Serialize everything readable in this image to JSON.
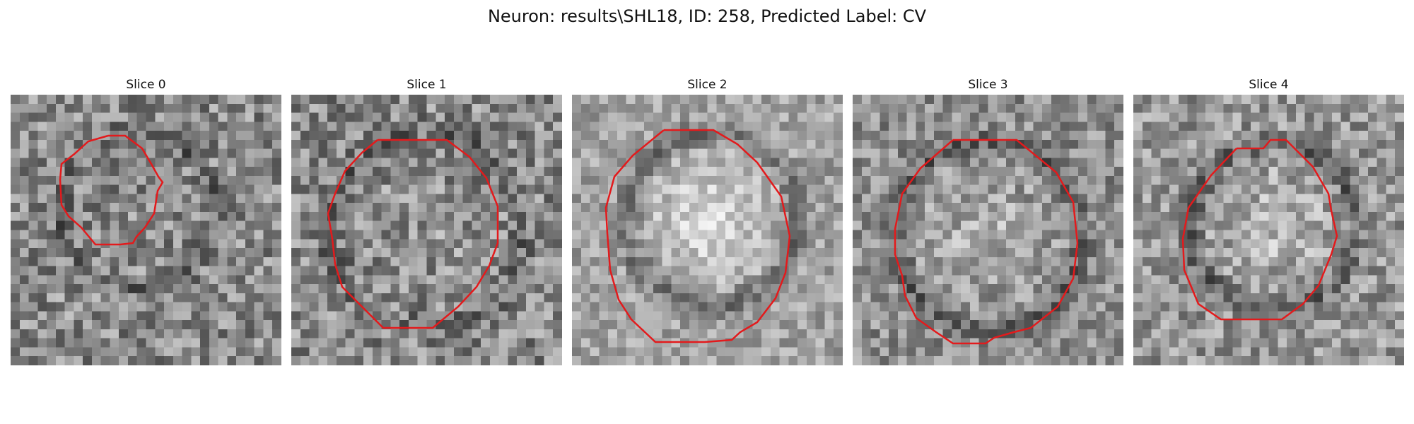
{
  "title": "Neuron: results\\SHL18, ID: 258, Predicted Label: CV",
  "panels": [
    {
      "label": "Slice 0",
      "image": "grayscale-noisy-micrograph",
      "contour_color": "#e31a1c"
    },
    {
      "label": "Slice 1",
      "image": "grayscale-noisy-micrograph",
      "contour_color": "#e31a1c"
    },
    {
      "label": "Slice 2",
      "image": "grayscale-noisy-micrograph",
      "contour_color": "#e31a1c"
    },
    {
      "label": "Slice 3",
      "image": "grayscale-noisy-micrograph",
      "contour_color": "#e31a1c"
    },
    {
      "label": "Slice 4",
      "image": "grayscale-noisy-micrograph",
      "contour_color": "#e31a1c"
    }
  ]
}
